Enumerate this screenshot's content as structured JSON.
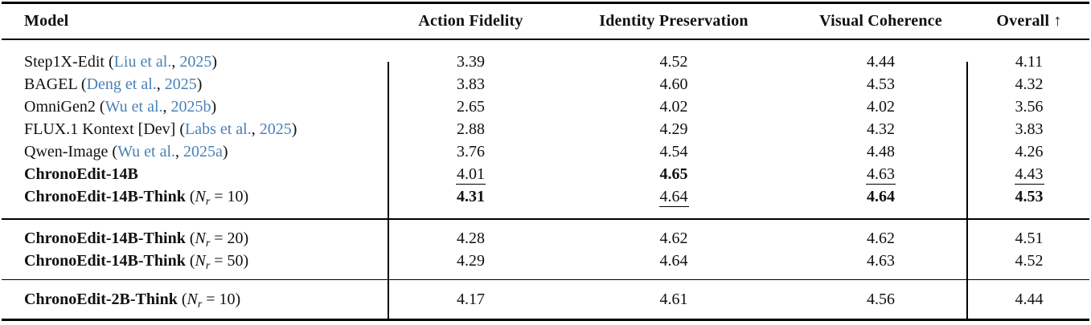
{
  "accent_color": "#4a81b6",
  "table": {
    "header": {
      "model": "Model",
      "action_fidelity": "Action Fidelity",
      "identity_preservation": "Identity Preservation",
      "visual_coherence": "Visual Coherence",
      "overall": "Overall ↑"
    },
    "sections": [
      {
        "rows": [
          {
            "name": "Step1X-Edit",
            "bold": false,
            "cite": {
              "authors": "Liu et al.",
              "year": "2025"
            },
            "values": [
              {
                "v": "3.39"
              },
              {
                "v": "4.52"
              },
              {
                "v": "4.44"
              },
              {
                "v": "4.11"
              }
            ]
          },
          {
            "name": "BAGEL",
            "bold": false,
            "cite": {
              "authors": "Deng et al.",
              "year": "2025"
            },
            "values": [
              {
                "v": "3.83"
              },
              {
                "v": "4.60"
              },
              {
                "v": "4.53"
              },
              {
                "v": "4.32"
              }
            ]
          },
          {
            "name": "OmniGen2",
            "bold": false,
            "cite": {
              "authors": "Wu et al.",
              "year": "2025b"
            },
            "values": [
              {
                "v": "2.65"
              },
              {
                "v": "4.02"
              },
              {
                "v": "4.02"
              },
              {
                "v": "3.56"
              }
            ]
          },
          {
            "name": "FLUX.1 Kontext [Dev]",
            "bold": false,
            "cite": {
              "authors": "Labs et al.",
              "year": "2025"
            },
            "values": [
              {
                "v": "2.88"
              },
              {
                "v": "4.29"
              },
              {
                "v": "4.32"
              },
              {
                "v": "3.83"
              }
            ]
          },
          {
            "name": "Qwen-Image",
            "bold": false,
            "cite": {
              "authors": "Wu et al.",
              "year": "2025a"
            },
            "values": [
              {
                "v": "3.76"
              },
              {
                "v": "4.54"
              },
              {
                "v": "4.48"
              },
              {
                "v": "4.26"
              }
            ]
          },
          {
            "name": "ChronoEdit-14B",
            "bold": true,
            "values": [
              {
                "v": "4.01",
                "style": "underline"
              },
              {
                "v": "4.65",
                "style": "bold"
              },
              {
                "v": "4.63",
                "style": "underline"
              },
              {
                "v": "4.43",
                "style": "underline"
              }
            ]
          },
          {
            "name": "ChronoEdit-14B-Think",
            "bold": true,
            "math": {
              "var": "N",
              "sub": "r",
              "rel": "=",
              "value": "10"
            },
            "values": [
              {
                "v": "4.31",
                "style": "bold"
              },
              {
                "v": "4.64",
                "style": "underline"
              },
              {
                "v": "4.64",
                "style": "bold"
              },
              {
                "v": "4.53",
                "style": "bold"
              }
            ]
          }
        ]
      },
      {
        "rows": [
          {
            "name": "ChronoEdit-14B-Think",
            "bold": true,
            "math": {
              "var": "N",
              "sub": "r",
              "rel": "=",
              "value": "20"
            },
            "values": [
              {
                "v": "4.28"
              },
              {
                "v": "4.62"
              },
              {
                "v": "4.62"
              },
              {
                "v": "4.51"
              }
            ]
          },
          {
            "name": "ChronoEdit-14B-Think",
            "bold": true,
            "math": {
              "var": "N",
              "sub": "r",
              "rel": "=",
              "value": "50"
            },
            "values": [
              {
                "v": "4.29"
              },
              {
                "v": "4.64"
              },
              {
                "v": "4.63"
              },
              {
                "v": "4.52"
              }
            ]
          }
        ]
      },
      {
        "rows": [
          {
            "name": "ChronoEdit-2B-Think",
            "bold": true,
            "math": {
              "var": "N",
              "sub": "r",
              "rel": "=",
              "value": "10"
            },
            "values": [
              {
                "v": "4.17"
              },
              {
                "v": "4.61"
              },
              {
                "v": "4.56"
              },
              {
                "v": "4.44"
              }
            ]
          }
        ]
      }
    ]
  }
}
